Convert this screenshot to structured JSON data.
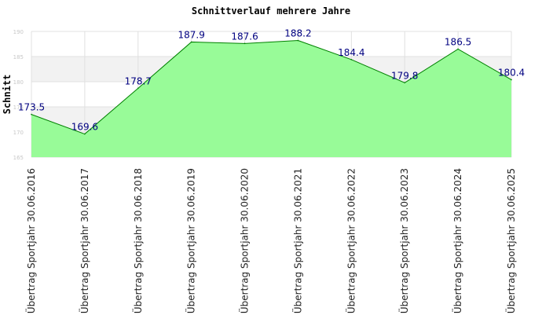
{
  "chart_data": {
    "type": "area",
    "title": "Schnittverlauf mehrere Jahre",
    "xlabel": "",
    "ylabel": "Schnitt",
    "categories": [
      "Übertrag Sportjahr 30.06.2016",
      "Übertrag Sportjahr 30.06.2017",
      "Übertrag Sportjahr 30.06.2018",
      "Übertrag Sportjahr 30.06.2019",
      "Übertrag Sportjahr 30.06.2020",
      "Übertrag Sportjahr 30.06.2021",
      "Übertrag Sportjahr 30.06.2022",
      "Übertrag Sportjahr 30.06.2023",
      "Übertrag Sportjahr 30.06.2024",
      "Übertrag Sportjahr 30.06.2025"
    ],
    "values": [
      173.5,
      169.6,
      178.7,
      187.9,
      187.6,
      188.2,
      184.4,
      179.8,
      186.5,
      180.4
    ],
    "value_labels": [
      "173.5",
      "169.6",
      "178.7",
      "187.9",
      "187.6",
      "188.2",
      "184.4",
      "179.8",
      "186.5",
      "180.4"
    ],
    "ylim": [
      165,
      190
    ],
    "yticks": [
      165,
      170,
      175,
      180,
      185,
      190
    ],
    "ytick_labels": [
      "165",
      "170",
      "175",
      "180",
      "185",
      "190"
    ],
    "grid": true,
    "legend": "none",
    "colors": {
      "fill": "#98fb98",
      "line": "#008000",
      "label": "#000080",
      "band": "#f2f2f2",
      "grid": "#e0e0e0"
    }
  }
}
